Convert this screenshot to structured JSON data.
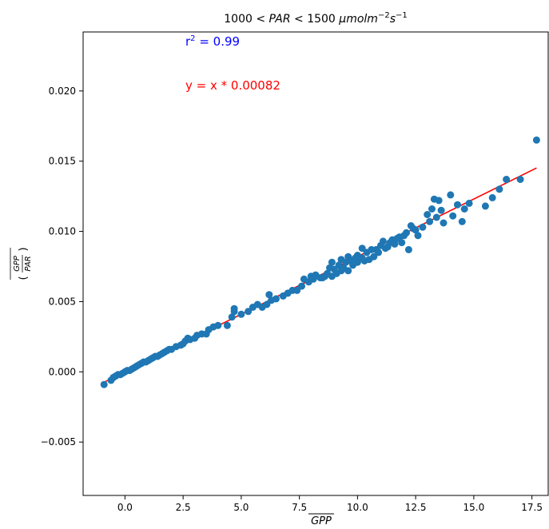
{
  "chart_data": {
    "type": "scatter",
    "title_prefix": "1000 < ",
    "title_mid_var": "PAR",
    "title_mid": " < 1500 ",
    "title_unit": "μmolm",
    "title_exp1": "−2",
    "title_s": "s",
    "title_exp2": "−1",
    "xlabel": "GPP",
    "ylabel_num": "GPP",
    "ylabel_den": "PAR",
    "xlim": [
      -1.8,
      18.2
    ],
    "ylim": [
      -0.0088,
      0.0242
    ],
    "xticks": [
      0.0,
      2.5,
      5.0,
      7.5,
      10.0,
      12.5,
      15.0,
      17.5
    ],
    "xtick_labels": [
      "0.0",
      "2.5",
      "5.0",
      "7.5",
      "10.0",
      "12.5",
      "15.0",
      "17.5"
    ],
    "yticks": [
      -0.005,
      0.0,
      0.005,
      0.01,
      0.015,
      0.02
    ],
    "ytick_labels": [
      "−0.005",
      "0.000",
      "0.005",
      "0.010",
      "0.015",
      "0.020"
    ],
    "r2_label": "r",
    "r2_sup": "2",
    "r2_value": " = 0.99",
    "fit_label": "y = x * 0.00082",
    "fit_slope": 0.00082,
    "fit_x_range": [
      -0.9,
      17.7
    ],
    "colors": {
      "points": "#1f77b4",
      "fit_line": "#ff0000",
      "r2_text": "#0000ff",
      "fit_text": "#ff0000"
    },
    "points": [
      [
        -0.9,
        -0.0009
      ],
      [
        -0.6,
        -0.0006
      ],
      [
        -0.5,
        -0.0004
      ],
      [
        -0.4,
        -0.0003
      ],
      [
        -0.3,
        -0.0002
      ],
      [
        -0.2,
        -0.0002
      ],
      [
        -0.1,
        -0.0001
      ],
      [
        0.0,
        0.0
      ],
      [
        0.1,
        0.0001
      ],
      [
        0.2,
        0.0001
      ],
      [
        0.3,
        0.0002
      ],
      [
        0.4,
        0.0003
      ],
      [
        0.5,
        0.0004
      ],
      [
        0.6,
        0.0005
      ],
      [
        0.7,
        0.0006
      ],
      [
        0.8,
        0.0007
      ],
      [
        0.9,
        0.0007
      ],
      [
        1.0,
        0.0008
      ],
      [
        1.1,
        0.0009
      ],
      [
        1.2,
        0.001
      ],
      [
        1.3,
        0.0011
      ],
      [
        1.4,
        0.0011
      ],
      [
        1.5,
        0.0012
      ],
      [
        1.6,
        0.0013
      ],
      [
        1.7,
        0.0014
      ],
      [
        1.8,
        0.0015
      ],
      [
        1.9,
        0.0016
      ],
      [
        2.0,
        0.0016
      ],
      [
        2.2,
        0.0018
      ],
      [
        2.4,
        0.0019
      ],
      [
        2.5,
        0.002
      ],
      [
        2.6,
        0.0022
      ],
      [
        2.7,
        0.0024
      ],
      [
        2.8,
        0.0023
      ],
      [
        3.0,
        0.0024
      ],
      [
        3.1,
        0.0026
      ],
      [
        3.3,
        0.0027
      ],
      [
        3.5,
        0.0027
      ],
      [
        3.6,
        0.003
      ],
      [
        3.8,
        0.0032
      ],
      [
        4.0,
        0.0033
      ],
      [
        4.4,
        0.0033
      ],
      [
        4.6,
        0.0039
      ],
      [
        4.7,
        0.0043
      ],
      [
        4.7,
        0.0045
      ],
      [
        5.0,
        0.0041
      ],
      [
        5.3,
        0.0043
      ],
      [
        5.5,
        0.0046
      ],
      [
        5.7,
        0.0048
      ],
      [
        5.9,
        0.0046
      ],
      [
        6.1,
        0.0048
      ],
      [
        6.3,
        0.0051
      ],
      [
        6.2,
        0.0055
      ],
      [
        6.5,
        0.0052
      ],
      [
        6.8,
        0.0054
      ],
      [
        7.0,
        0.0056
      ],
      [
        7.2,
        0.0058
      ],
      [
        7.4,
        0.0058
      ],
      [
        7.6,
        0.0061
      ],
      [
        7.7,
        0.0066
      ],
      [
        7.9,
        0.0064
      ],
      [
        8.0,
        0.0068
      ],
      [
        8.1,
        0.0066
      ],
      [
        8.2,
        0.0069
      ],
      [
        8.4,
        0.0067
      ],
      [
        8.5,
        0.0067
      ],
      [
        8.6,
        0.0068
      ],
      [
        8.7,
        0.007
      ],
      [
        8.8,
        0.0074
      ],
      [
        8.9,
        0.0068
      ],
      [
        8.9,
        0.0078
      ],
      [
        9.0,
        0.0073
      ],
      [
        9.1,
        0.007
      ],
      [
        9.2,
        0.0076
      ],
      [
        9.3,
        0.0072
      ],
      [
        9.3,
        0.008
      ],
      [
        9.4,
        0.0074
      ],
      [
        9.5,
        0.0078
      ],
      [
        9.6,
        0.0072
      ],
      [
        9.6,
        0.0082
      ],
      [
        9.7,
        0.0079
      ],
      [
        9.8,
        0.0076
      ],
      [
        9.9,
        0.0081
      ],
      [
        10.0,
        0.0083
      ],
      [
        10.0,
        0.0078
      ],
      [
        10.2,
        0.0088
      ],
      [
        10.2,
        0.0081
      ],
      [
        10.3,
        0.0079
      ],
      [
        10.4,
        0.0085
      ],
      [
        10.5,
        0.008
      ],
      [
        10.6,
        0.0087
      ],
      [
        10.7,
        0.0082
      ],
      [
        10.8,
        0.0087
      ],
      [
        10.9,
        0.0085
      ],
      [
        11.0,
        0.009
      ],
      [
        11.1,
        0.0093
      ],
      [
        11.2,
        0.0088
      ],
      [
        11.3,
        0.0089
      ],
      [
        11.4,
        0.0092
      ],
      [
        11.5,
        0.0094
      ],
      [
        11.6,
        0.0091
      ],
      [
        11.7,
        0.0095
      ],
      [
        11.8,
        0.0096
      ],
      [
        11.9,
        0.0092
      ],
      [
        12.0,
        0.0097
      ],
      [
        12.1,
        0.0099
      ],
      [
        12.2,
        0.0087
      ],
      [
        12.3,
        0.0104
      ],
      [
        12.4,
        0.0102
      ],
      [
        12.5,
        0.0101
      ],
      [
        12.6,
        0.0097
      ],
      [
        12.8,
        0.0103
      ],
      [
        13.0,
        0.0112
      ],
      [
        13.1,
        0.0107
      ],
      [
        13.2,
        0.0116
      ],
      [
        13.3,
        0.0123
      ],
      [
        13.4,
        0.011
      ],
      [
        13.5,
        0.0122
      ],
      [
        13.6,
        0.0115
      ],
      [
        13.7,
        0.0106
      ],
      [
        14.0,
        0.0126
      ],
      [
        14.1,
        0.0111
      ],
      [
        14.3,
        0.0119
      ],
      [
        14.5,
        0.0107
      ],
      [
        14.6,
        0.0116
      ],
      [
        14.8,
        0.012
      ],
      [
        15.5,
        0.0118
      ],
      [
        15.8,
        0.0124
      ],
      [
        16.1,
        0.013
      ],
      [
        16.4,
        0.0137
      ],
      [
        17.0,
        0.0137
      ],
      [
        17.7,
        0.0165
      ]
    ]
  }
}
